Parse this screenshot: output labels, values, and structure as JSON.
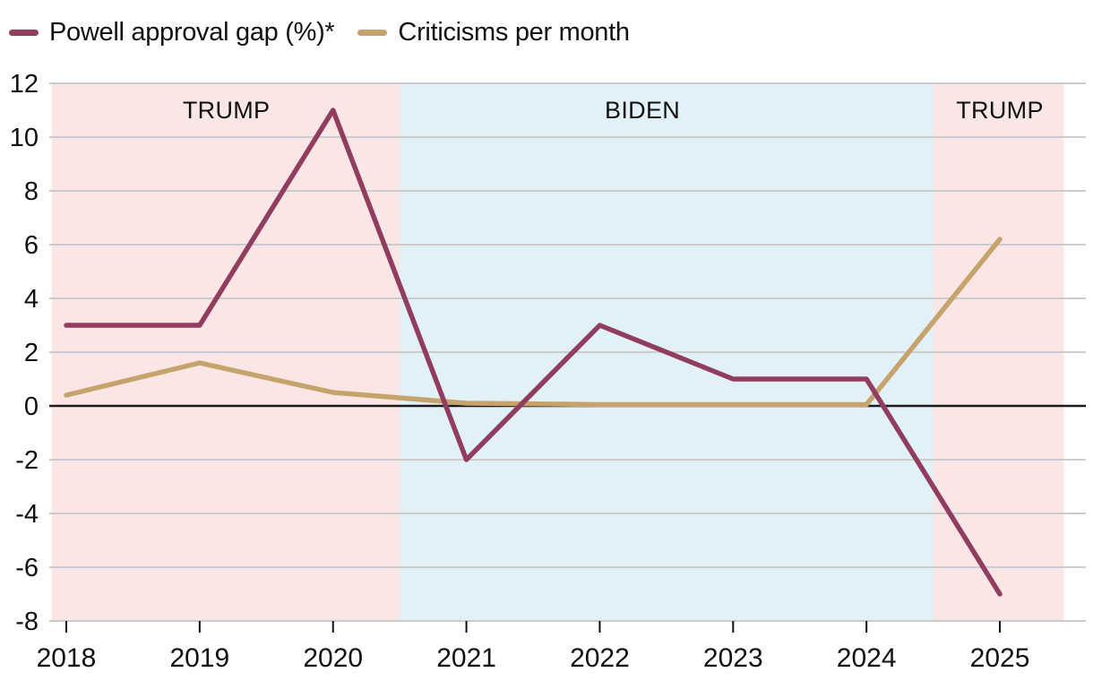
{
  "legend": {
    "items": [
      {
        "label": "Powell approval gap (%)*",
        "color": "#913D5F"
      },
      {
        "label": "Criticisms per month",
        "color": "#C6A36C"
      }
    ]
  },
  "chart_data": {
    "type": "line",
    "x": [
      2018,
      2019,
      2020,
      2021,
      2022,
      2023,
      2024,
      2025
    ],
    "series": [
      {
        "name": "Powell approval gap (%)*",
        "color": "#913D5F",
        "values": [
          3,
          3,
          11,
          -2,
          3,
          1,
          1,
          -7
        ]
      },
      {
        "name": "Criticisms per month",
        "color": "#C6A36C",
        "values": [
          0.4,
          1.6,
          0.5,
          0.1,
          0.05,
          0.05,
          0.05,
          6.2
        ]
      }
    ],
    "xticks": [
      2018,
      2019,
      2020,
      2021,
      2022,
      2023,
      2024,
      2025
    ],
    "yticks": [
      12,
      10,
      8,
      6,
      4,
      2,
      0,
      -2,
      -4,
      -6,
      -8
    ],
    "ylim": [
      -8,
      12
    ],
    "xlim": [
      2017.89,
      2025.64
    ],
    "grid": true,
    "legend_position": "top-left",
    "zero_line": true,
    "bands": [
      {
        "label": "TRUMP",
        "from": 2017.89,
        "to": 2020.5,
        "color": "#FAE7E5",
        "label_year": 2019.2
      },
      {
        "label": "BIDEN",
        "from": 2020.5,
        "to": 2024.5,
        "color": "#E2F0F7",
        "label_year": 2022.32
      },
      {
        "label": "TRUMP",
        "from": 2024.5,
        "to": 2025.48,
        "color": "#FAE7E5",
        "label_year": 2025.0
      }
    ],
    "colors": {
      "gridline": "#CCCCCC",
      "zero_line": "#1A1A1A",
      "tick": "#111111",
      "text": "#111111"
    }
  }
}
